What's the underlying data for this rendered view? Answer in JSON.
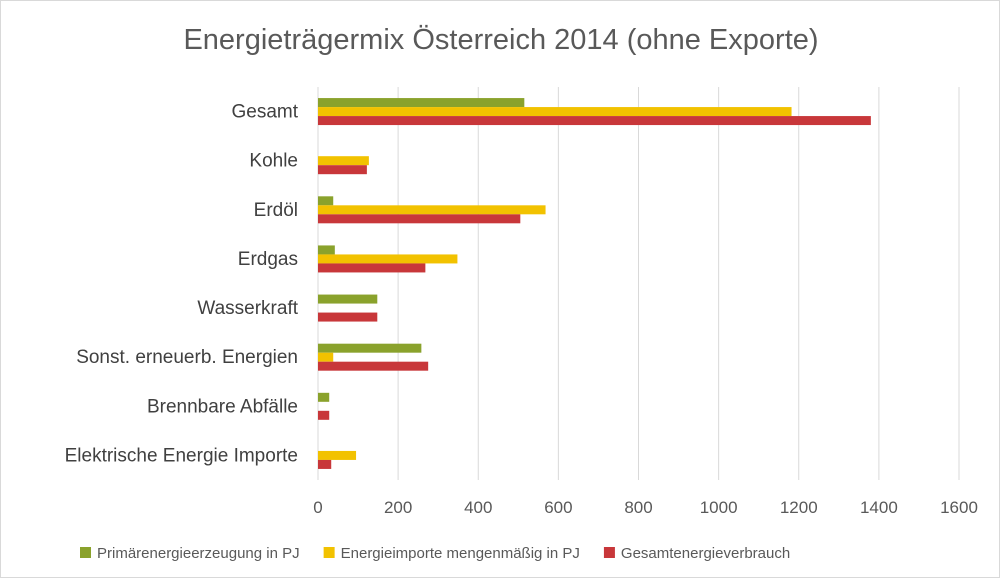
{
  "chart_data": {
    "type": "bar",
    "orientation": "horizontal",
    "title": "Energieträgermix Österreich 2014 (ohne Exporte)",
    "categories": [
      "Gesamt",
      "Kohle",
      "Erdöl",
      "Erdgas",
      "Wasserkraft",
      "Sonst. erneuerb. Energien",
      "Brennbare Abfälle",
      "Elektrische Energie Importe"
    ],
    "series": [
      {
        "name": "Primärenergieerzeugung in PJ",
        "color": "#8aa22c",
        "values": [
          515,
          0,
          38,
          42,
          148,
          258,
          28,
          0
        ]
      },
      {
        "name": "Energieimporte mengenmäßig in PJ",
        "color": "#f2c200",
        "values": [
          1182,
          127,
          568,
          348,
          0,
          38,
          0,
          95
        ]
      },
      {
        "name": "Gesamtenergieverbrauch",
        "color": "#c8373a",
        "values": [
          1380,
          122,
          505,
          268,
          148,
          275,
          28,
          33
        ]
      }
    ],
    "xlim": [
      0,
      1600
    ],
    "xticks": [
      0,
      200,
      400,
      600,
      800,
      1000,
      1200,
      1400,
      1600
    ],
    "grid": true,
    "legend": "bottom"
  }
}
